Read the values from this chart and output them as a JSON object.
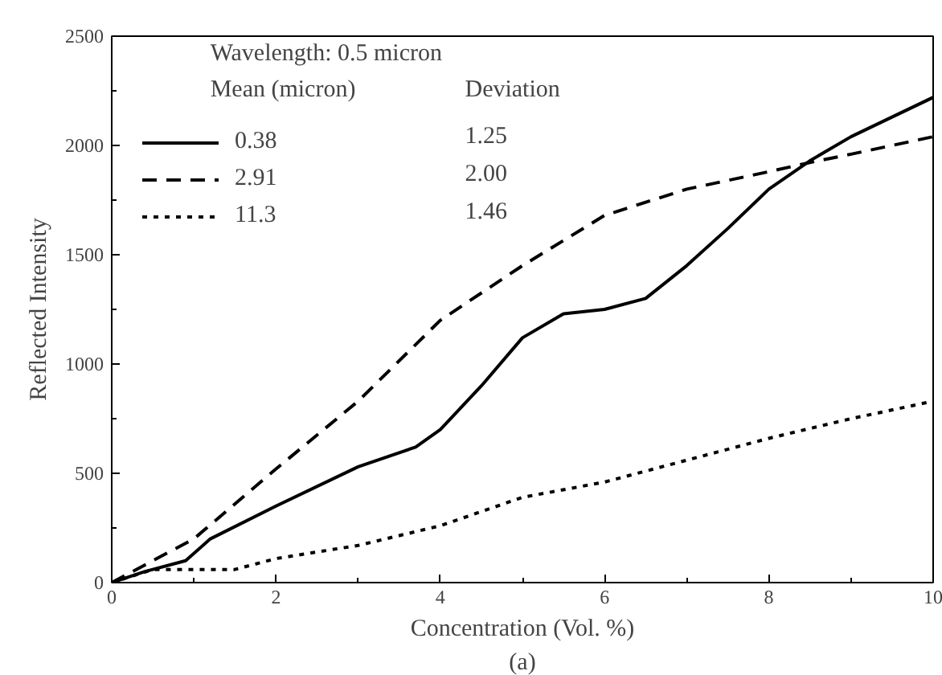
{
  "chart_data": {
    "type": "line",
    "xlabel": "Concentration (Vol. %)",
    "ylabel": "Reflected Intensity",
    "legend_title": "Wavelength: 0.5 micron",
    "legend": "top left",
    "grid": false,
    "xlim": [
      0,
      10
    ],
    "ylim": [
      0,
      2500
    ],
    "xticks": [
      0,
      2,
      4,
      6,
      8,
      10
    ],
    "yticks": [
      0,
      500,
      1000,
      1500,
      2000,
      2500
    ],
    "series": [
      {
        "name": "0.38",
        "color": "#000000",
        "line_style": "solid",
        "x": [
          0,
          0.4,
          0.9,
          1.2,
          2,
          3,
          3.7,
          4,
          4.5,
          5,
          5.5,
          6,
          6.5,
          7,
          7.5,
          8,
          8.5,
          9,
          9.5,
          10
        ],
        "values": [
          0,
          50,
          100,
          200,
          350,
          530,
          620,
          700,
          900,
          1120,
          1230,
          1250,
          1300,
          1450,
          1620,
          1800,
          1930,
          2040,
          2130,
          2220
        ]
      },
      {
        "name": "2.91",
        "color": "#000000",
        "line_style": "dashed",
        "x": [
          0,
          0.5,
          1,
          2,
          3,
          4,
          5,
          6,
          7,
          8,
          8.6,
          9,
          10
        ],
        "values": [
          0,
          100,
          200,
          520,
          830,
          1200,
          1450,
          1680,
          1800,
          1880,
          1930,
          1960,
          2040
        ]
      },
      {
        "name": "11.3",
        "color": "#000000",
        "line_style": "dotted",
        "x": [
          0,
          0.5,
          1,
          1.5,
          2,
          3,
          4,
          5,
          6,
          7,
          8,
          9,
          10
        ],
        "values": [
          0,
          60,
          60,
          60,
          110,
          170,
          260,
          390,
          460,
          560,
          660,
          750,
          830
        ]
      }
    ],
    "annotations": [
      "Mean (micron)",
      "Deviation",
      "1.25",
      "2.00",
      "1.46",
      "(a)"
    ]
  }
}
